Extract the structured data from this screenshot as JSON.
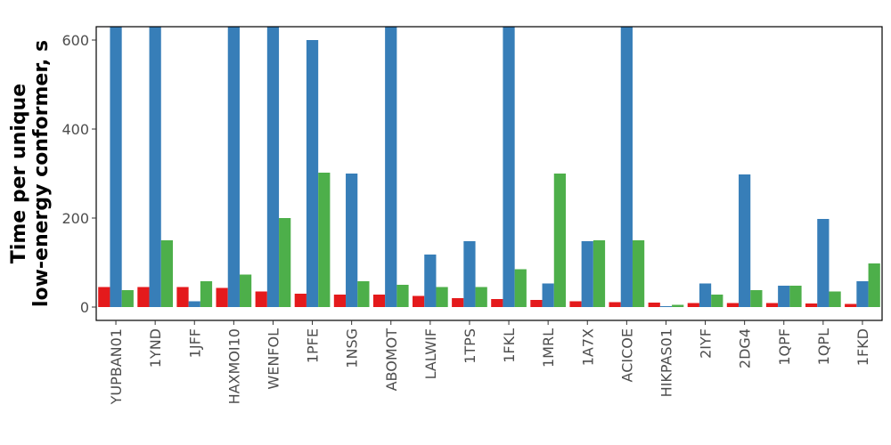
{
  "chart_data": {
    "type": "bar",
    "title": "",
    "xlabel": "",
    "ylabel": [
      "Time per unique",
      "low-energy conformer, s"
    ],
    "ylim": [
      -30,
      630
    ],
    "yticks": [
      0,
      200,
      400,
      600
    ],
    "grid": false,
    "legend": "none",
    "categories": [
      "YUPBAN01",
      "1YND",
      "1JFF",
      "HAXMOI10",
      "WENFOL",
      "1PFE",
      "1NSG",
      "ABOMOT",
      "LALWIF",
      "1TPS",
      "1FKL",
      "1MRL",
      "1A7X",
      "ACICOE",
      "HIKPAS01",
      "2IYF",
      "2DG4",
      "1QPF",
      "1QPL",
      "1FKD"
    ],
    "series": [
      {
        "color": "#e41a1c",
        "values": [
          45,
          45,
          45,
          43,
          35,
          30,
          28,
          28,
          25,
          20,
          18,
          16,
          13,
          11,
          10,
          9,
          9,
          9,
          8,
          7
        ]
      },
      {
        "color": "#377eb8",
        "values": [
          630,
          630,
          13,
          630,
          630,
          600,
          300,
          630,
          118,
          148,
          630,
          53,
          148,
          630,
          2,
          53,
          298,
          48,
          198,
          58
        ]
      },
      {
        "color": "#4daf4a",
        "values": [
          38,
          150,
          58,
          73,
          200,
          302,
          58,
          50,
          45,
          45,
          85,
          300,
          150,
          150,
          5,
          28,
          38,
          48,
          35,
          98
        ]
      }
    ]
  }
}
